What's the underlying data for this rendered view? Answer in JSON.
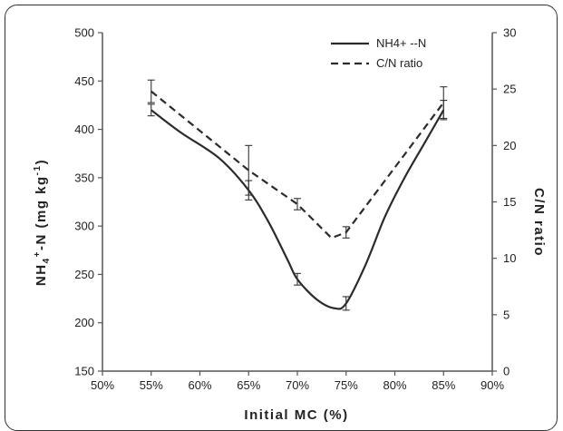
{
  "chart_data": {
    "type": "line",
    "xlabel": "Initial MC (%)",
    "ylabel_left_parts": {
      "main": "NH",
      "sub": "4",
      "sup": "+",
      "rest": "-N (mg kg",
      "sup2": "-1",
      "end": ")"
    },
    "ylabel_right": "C/N ratio",
    "x_ticks": [
      "50%",
      "55%",
      "60%",
      "65%",
      "70%",
      "75%",
      "80%",
      "85%",
      "90%"
    ],
    "xlim": [
      50,
      90
    ],
    "y_left_ticks": [
      "150",
      "200",
      "250",
      "300",
      "350",
      "400",
      "450",
      "500"
    ],
    "y_left_lim": [
      150,
      500
    ],
    "y_right_ticks": [
      "0",
      "5",
      "10",
      "15",
      "20",
      "25",
      "30"
    ],
    "y_right_lim": [
      0,
      30
    ],
    "grid": false,
    "legend_position": "top-right",
    "series": [
      {
        "name": "NH4+ --N",
        "axis": "left",
        "style": "solid",
        "color": "#2b2b2b",
        "x": [
          55,
          65,
          70,
          75,
          85
        ],
        "y": [
          420,
          337,
          245,
          220,
          420
        ],
        "error": [
          6,
          10,
          6,
          7,
          10
        ],
        "curve": [
          [
            55,
            420
          ],
          [
            58,
            397
          ],
          [
            62,
            370
          ],
          [
            65,
            337
          ],
          [
            67,
            305
          ],
          [
            69,
            265
          ],
          [
            70,
            245
          ],
          [
            72,
            224
          ],
          [
            73.8,
            215
          ],
          [
            75,
            220
          ],
          [
            77,
            260
          ],
          [
            79,
            310
          ],
          [
            81,
            350
          ],
          [
            83,
            385
          ],
          [
            85,
            420
          ]
        ]
      },
      {
        "name": "C/N ratio",
        "axis": "right",
        "style": "dashed",
        "color": "#2b2b2b",
        "x": [
          55,
          65,
          70,
          73.5,
          75,
          85
        ],
        "y": [
          24.8,
          17.8,
          14.8,
          11.8,
          12.3,
          23.8
        ],
        "error_points": [
          {
            "x": 55,
            "y": 24.8,
            "err": 1.0
          },
          {
            "x": 65,
            "y": 17.8,
            "err": 2.2
          },
          {
            "x": 70,
            "y": 14.8,
            "err": 0.5
          },
          {
            "x": 75,
            "y": 12.3,
            "err": 0.5
          },
          {
            "x": 85,
            "y": 23.8,
            "err": 1.4
          }
        ]
      }
    ]
  }
}
